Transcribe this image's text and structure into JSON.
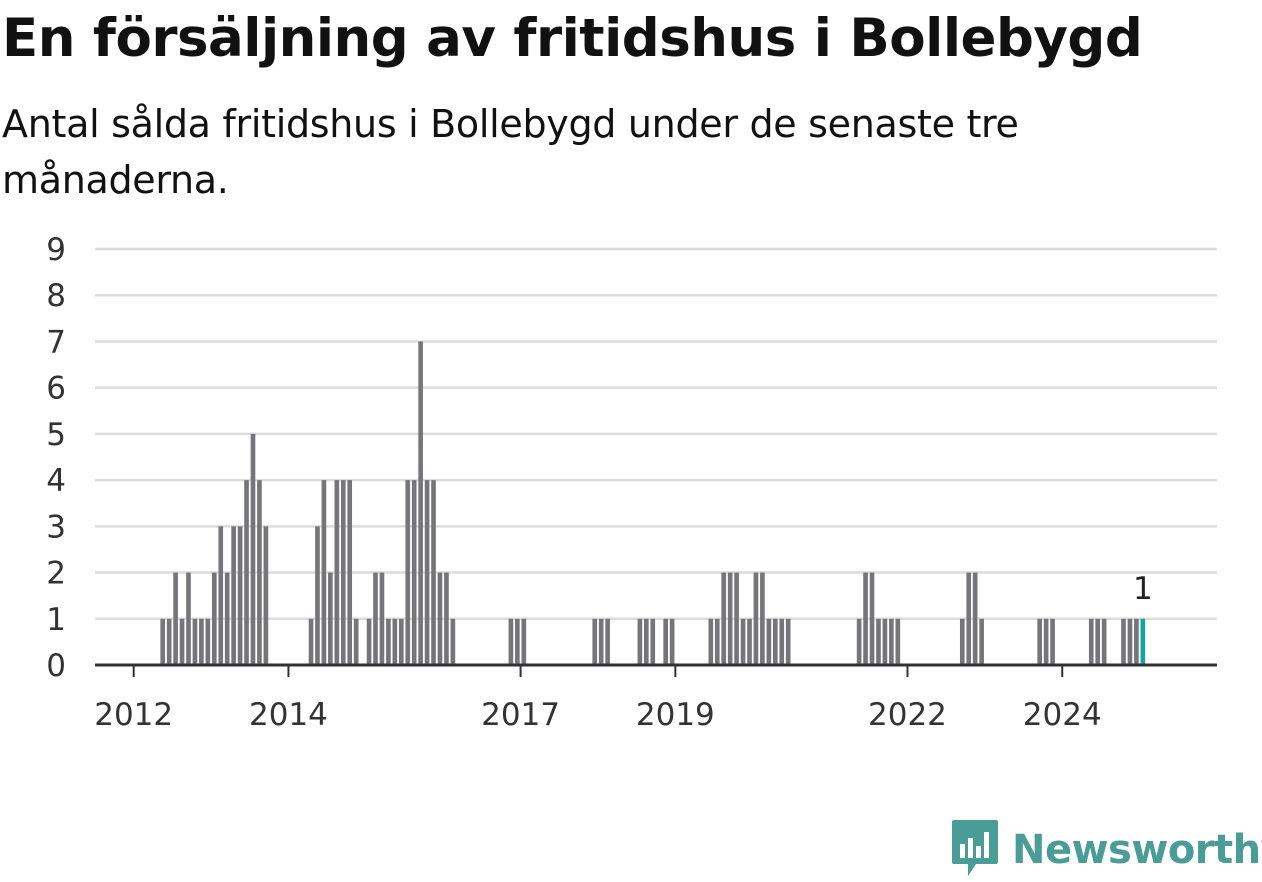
{
  "title": "En försäljning av fritidshus i Bollebygd",
  "subtitle": "Antal sålda fritidshus i Bollebygd under de senaste tre månaderna.",
  "brand": {
    "name": "Newsworthy",
    "color": "#4a9c96",
    "icon": "bar-chart-speech-bubble-icon"
  },
  "colors": {
    "bar": "#76757a",
    "highlight": "#13a69e",
    "grid": "#dcdcdc",
    "axis": "#333333"
  },
  "chart_data": {
    "type": "bar",
    "x_unit": "month",
    "x_range": [
      "2011-07",
      "2025-12"
    ],
    "ylim": [
      0,
      9
    ],
    "yticks": [
      0,
      1,
      2,
      3,
      4,
      5,
      6,
      7,
      8,
      9
    ],
    "xticks": [
      "2012",
      "2014",
      "2017",
      "2019",
      "2022",
      "2024"
    ],
    "xlabel": "",
    "ylabel": "",
    "grid": true,
    "highlight_annotation": {
      "month": "2025-01",
      "text": "1"
    },
    "series": [
      {
        "points": [
          {
            "m": "2012-05",
            "v": 1
          },
          {
            "m": "2012-06",
            "v": 1
          },
          {
            "m": "2012-07",
            "v": 2
          },
          {
            "m": "2012-08",
            "v": 1
          },
          {
            "m": "2012-09",
            "v": 2
          },
          {
            "m": "2012-10",
            "v": 1
          },
          {
            "m": "2012-11",
            "v": 1
          },
          {
            "m": "2012-12",
            "v": 1
          },
          {
            "m": "2013-01",
            "v": 2
          },
          {
            "m": "2013-02",
            "v": 3
          },
          {
            "m": "2013-03",
            "v": 2
          },
          {
            "m": "2013-04",
            "v": 3
          },
          {
            "m": "2013-05",
            "v": 3
          },
          {
            "m": "2013-06",
            "v": 4
          },
          {
            "m": "2013-07",
            "v": 5
          },
          {
            "m": "2013-08",
            "v": 4
          },
          {
            "m": "2013-09",
            "v": 3
          },
          {
            "m": "2014-04",
            "v": 1
          },
          {
            "m": "2014-05",
            "v": 3
          },
          {
            "m": "2014-06",
            "v": 4
          },
          {
            "m": "2014-07",
            "v": 2
          },
          {
            "m": "2014-08",
            "v": 4
          },
          {
            "m": "2014-09",
            "v": 4
          },
          {
            "m": "2014-10",
            "v": 4
          },
          {
            "m": "2014-11",
            "v": 1
          },
          {
            "m": "2015-01",
            "v": 1
          },
          {
            "m": "2015-02",
            "v": 2
          },
          {
            "m": "2015-03",
            "v": 2
          },
          {
            "m": "2015-04",
            "v": 1
          },
          {
            "m": "2015-05",
            "v": 1
          },
          {
            "m": "2015-06",
            "v": 1
          },
          {
            "m": "2015-07",
            "v": 4
          },
          {
            "m": "2015-08",
            "v": 4
          },
          {
            "m": "2015-09",
            "v": 7
          },
          {
            "m": "2015-10",
            "v": 4
          },
          {
            "m": "2015-11",
            "v": 4
          },
          {
            "m": "2015-12",
            "v": 2
          },
          {
            "m": "2016-01",
            "v": 2
          },
          {
            "m": "2016-02",
            "v": 1
          },
          {
            "m": "2016-11",
            "v": 1
          },
          {
            "m": "2016-12",
            "v": 1
          },
          {
            "m": "2017-01",
            "v": 1
          },
          {
            "m": "2017-12",
            "v": 1
          },
          {
            "m": "2018-01",
            "v": 1
          },
          {
            "m": "2018-02",
            "v": 1
          },
          {
            "m": "2018-07",
            "v": 1
          },
          {
            "m": "2018-08",
            "v": 1
          },
          {
            "m": "2018-09",
            "v": 1
          },
          {
            "m": "2018-11",
            "v": 1
          },
          {
            "m": "2018-12",
            "v": 1
          },
          {
            "m": "2019-06",
            "v": 1
          },
          {
            "m": "2019-07",
            "v": 1
          },
          {
            "m": "2019-08",
            "v": 2
          },
          {
            "m": "2019-09",
            "v": 2
          },
          {
            "m": "2019-10",
            "v": 2
          },
          {
            "m": "2019-11",
            "v": 1
          },
          {
            "m": "2019-12",
            "v": 1
          },
          {
            "m": "2020-01",
            "v": 2
          },
          {
            "m": "2020-02",
            "v": 2
          },
          {
            "m": "2020-03",
            "v": 1
          },
          {
            "m": "2020-04",
            "v": 1
          },
          {
            "m": "2020-05",
            "v": 1
          },
          {
            "m": "2020-06",
            "v": 1
          },
          {
            "m": "2021-05",
            "v": 1
          },
          {
            "m": "2021-06",
            "v": 2
          },
          {
            "m": "2021-07",
            "v": 2
          },
          {
            "m": "2021-08",
            "v": 1
          },
          {
            "m": "2021-09",
            "v": 1
          },
          {
            "m": "2021-10",
            "v": 1
          },
          {
            "m": "2021-11",
            "v": 1
          },
          {
            "m": "2022-09",
            "v": 1
          },
          {
            "m": "2022-10",
            "v": 2
          },
          {
            "m": "2022-11",
            "v": 2
          },
          {
            "m": "2022-12",
            "v": 1
          },
          {
            "m": "2023-09",
            "v": 1
          },
          {
            "m": "2023-10",
            "v": 1
          },
          {
            "m": "2023-11",
            "v": 1
          },
          {
            "m": "2024-05",
            "v": 1
          },
          {
            "m": "2024-06",
            "v": 1
          },
          {
            "m": "2024-07",
            "v": 1
          },
          {
            "m": "2024-10",
            "v": 1
          },
          {
            "m": "2024-11",
            "v": 1
          },
          {
            "m": "2024-12",
            "v": 1
          },
          {
            "m": "2025-01",
            "v": 1,
            "highlight": true
          }
        ]
      }
    ]
  }
}
